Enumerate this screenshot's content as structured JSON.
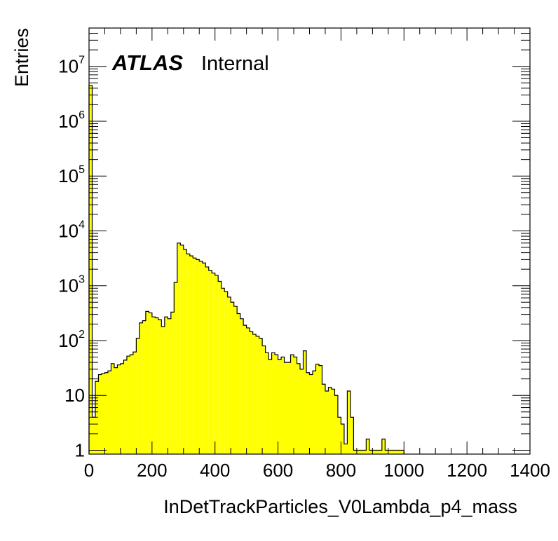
{
  "chart_data": {
    "type": "histogram",
    "xlabel": "InDetTrackParticles_V0Lambda_p4_mass",
    "ylabel": "Entries",
    "label_bold": "ATLAS",
    "label_status": "Internal",
    "xlim": [
      0,
      1400
    ],
    "ylim": [
      0.85,
      50000000
    ],
    "yscale": "log",
    "bin_width": 10,
    "fill_color": "#ffff00",
    "line_color": "#000000",
    "x_ticks": [
      0,
      200,
      400,
      600,
      800,
      1000,
      1200,
      1400
    ],
    "x_tick_labels": [
      "0",
      "200",
      "400",
      "600",
      "800",
      "1000",
      "1200",
      "1400"
    ],
    "y_ticks": [
      {
        "value": 1,
        "label": "1",
        "exp": ""
      },
      {
        "value": 10,
        "label": "10",
        "exp": ""
      },
      {
        "value": 100,
        "label": "10",
        "exp": "2"
      },
      {
        "value": 1000,
        "label": "10",
        "exp": "3"
      },
      {
        "value": 10000,
        "label": "10",
        "exp": "4"
      },
      {
        "value": 100000,
        "label": "10",
        "exp": "5"
      },
      {
        "value": 1000000,
        "label": "10",
        "exp": "6"
      },
      {
        "value": 10000000,
        "label": "10",
        "exp": "7"
      }
    ],
    "bins": [
      [
        0,
        4500000
      ],
      [
        10,
        4
      ],
      [
        20,
        18
      ],
      [
        30,
        24
      ],
      [
        40,
        25
      ],
      [
        50,
        26
      ],
      [
        60,
        28
      ],
      [
        70,
        38
      ],
      [
        80,
        32
      ],
      [
        90,
        36
      ],
      [
        100,
        38
      ],
      [
        110,
        44
      ],
      [
        120,
        52
      ],
      [
        130,
        55
      ],
      [
        140,
        62
      ],
      [
        150,
        110
      ],
      [
        160,
        210
      ],
      [
        170,
        230
      ],
      [
        180,
        340
      ],
      [
        190,
        320
      ],
      [
        200,
        270
      ],
      [
        210,
        260
      ],
      [
        220,
        240
      ],
      [
        230,
        180
      ],
      [
        240,
        270
      ],
      [
        250,
        250
      ],
      [
        260,
        330
      ],
      [
        270,
        1150
      ],
      [
        280,
        6000
      ],
      [
        290,
        5500
      ],
      [
        300,
        4600
      ],
      [
        310,
        3800
      ],
      [
        320,
        3500
      ],
      [
        330,
        3200
      ],
      [
        340,
        3000
      ],
      [
        350,
        2800
      ],
      [
        360,
        2600
      ],
      [
        370,
        2200
      ],
      [
        380,
        1900
      ],
      [
        390,
        1700
      ],
      [
        400,
        1550
      ],
      [
        410,
        1200
      ],
      [
        420,
        900
      ],
      [
        430,
        780
      ],
      [
        440,
        620
      ],
      [
        450,
        500
      ],
      [
        460,
        420
      ],
      [
        470,
        310
      ],
      [
        480,
        250
      ],
      [
        490,
        190
      ],
      [
        500,
        170
      ],
      [
        510,
        145
      ],
      [
        520,
        130
      ],
      [
        530,
        120
      ],
      [
        540,
        110
      ],
      [
        550,
        80
      ],
      [
        560,
        60
      ],
      [
        570,
        45
      ],
      [
        580,
        60
      ],
      [
        590,
        55
      ],
      [
        600,
        45
      ],
      [
        610,
        50
      ],
      [
        620,
        40
      ],
      [
        630,
        40
      ],
      [
        640,
        55
      ],
      [
        650,
        50
      ],
      [
        660,
        38
      ],
      [
        670,
        30
      ],
      [
        680,
        65
      ],
      [
        690,
        26
      ],
      [
        700,
        24
      ],
      [
        710,
        28
      ],
      [
        720,
        37
      ],
      [
        730,
        35
      ],
      [
        740,
        16
      ],
      [
        750,
        12
      ],
      [
        760,
        14
      ],
      [
        770,
        13
      ],
      [
        780,
        10
      ],
      [
        790,
        4
      ],
      [
        800,
        3
      ],
      [
        810,
        1.3
      ],
      [
        820,
        12
      ],
      [
        830,
        4
      ],
      [
        840,
        1
      ],
      [
        850,
        1
      ],
      [
        860,
        1
      ],
      [
        870,
        1
      ],
      [
        880,
        1.6
      ],
      [
        890,
        1
      ],
      [
        900,
        1
      ],
      [
        910,
        1
      ],
      [
        920,
        1
      ],
      [
        930,
        1.6
      ],
      [
        940,
        1
      ],
      [
        950,
        1
      ],
      [
        960,
        1
      ],
      [
        970,
        1
      ],
      [
        980,
        1
      ],
      [
        990,
        1
      ]
    ]
  }
}
